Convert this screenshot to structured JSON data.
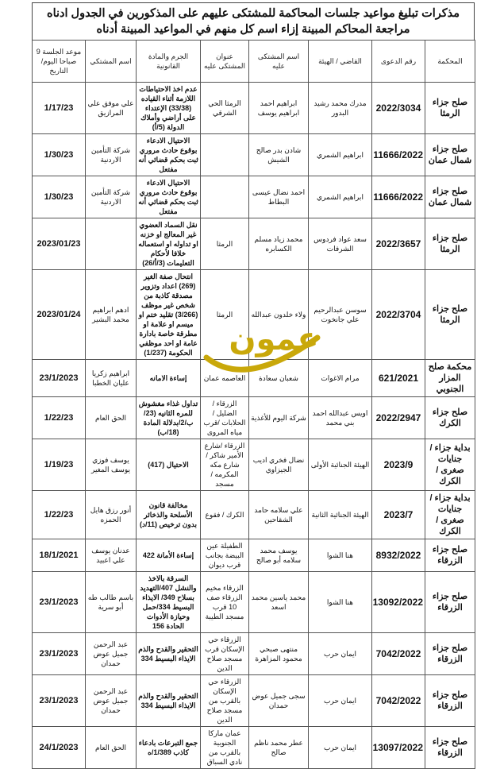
{
  "title": "مذكرات تبليغ مواعيد جلسات المحاكمة للمشتكى عليهم على المذكورين في الجدول ادناه مراجعة المحاكم المبينة إزاء اسم كل منهم في المواعيد المبينة أدناه",
  "watermark": "عمون",
  "watermark_color": "#c9a80a",
  "headers": {
    "court": "المحكمة",
    "case_no": "رقم الدعوى",
    "judge": "القاضي / الهيئة",
    "defendant": "اسم المشتكى عليه",
    "address": "عنوان المشتكى عليه",
    "crime": "الجرم والمادة القانونية",
    "complainant": "اسم المشتكي",
    "date": "موعد الجلسة 9 صباحا اليوم/التاريخ"
  },
  "rows": [
    {
      "court": "صلح جزاء الرمثا",
      "case_no": "2022/3034",
      "judge": "مدرك محمد رشيد البدور",
      "defendant": "ابراهيم احمد ابراهيم يوسف",
      "address": "الرمثا الحي الشرقي",
      "crime": "عدم اخذ الاحتياطات اللازمة أثناء القياده (33/38) الإعتداء على أراضي وأملاك الدولة (5/أ)",
      "complainant": "علي موفق علي المرازيق",
      "date": "1/17/23"
    },
    {
      "court": "صلح جزاء شمال عمان",
      "case_no": "11666/2022",
      "judge": "ابراهيم الشمري",
      "defendant": "شادن بدر صالح الشيش",
      "address": "",
      "crime": "الاحتيال الادعاء بوقوع حادث مروري ثبت بحكم قضائي أنه مفتعل",
      "complainant": "شركة التأمين الاردنية",
      "date": "1/30/23"
    },
    {
      "court": "صلح جزاء شمال عمان",
      "case_no": "11666/2022",
      "judge": "ابراهيم الشمري",
      "defendant": "احمد نضال عيسى البطاط",
      "address": "",
      "crime": "الاحتيال الادعاء بوقوع حادث مروري ثبت بحكم قضائي أنه مفتعل",
      "complainant": "شركة التأمين الاردنية",
      "date": "1/30/23"
    },
    {
      "court": "صلح جزاء الرمثا",
      "case_no": "2022/3657",
      "judge": "سعد عواد فردوس الشرفات",
      "defendant": "محمد زياد مسلم الكسابره",
      "address": "الرمثا",
      "crime": "نقل السماد العضوي غير المعالج او خزنه او تداوله او استعماله خلافا لأحكام التعليمات (3/أ/26)",
      "complainant": "",
      "date": "2023/01/23"
    },
    {
      "court": "صلح جزاء الرمثا",
      "case_no": "2022/3704",
      "judge": "سوسن عبدالرحيم علي جانخوت",
      "defendant": "ولاء خلدون عبدالله",
      "address": "الرمثا",
      "crime": "انتحال صفة الغير (269) اعداد وتزوير مصدقة كاذبة من شخص غير موظف (3/266) تقليد ختم او ميسم او علامة او مطرقة خاصة بادارة عامة او احد موظفي الحكومة (1/237)",
      "complainant": "ادهم ابراهيم محمد البشير",
      "date": "2023/01/24"
    },
    {
      "court": "محكمة صلح المزار الجنوبي",
      "case_no": "621/2021",
      "judge": "مرام الاغوات",
      "defendant": "شعبان سعادة",
      "address": "العاصمه عمان",
      "crime": "إساءة الامانه",
      "complainant": "ابراهيم زكريا عليان الخطبا",
      "date": "23/1/2023"
    },
    {
      "court": "صلح جزاء الكرك",
      "case_no": "2022/2947",
      "judge": "اويس عبدالله احمد بني محمد",
      "defendant": "شركة اليوم للأغذية",
      "address": "الزرقاء /الضليل /الحلابات /قرب مياه المروى",
      "crime": "تداول غذاء مغشوش للمره الثانيه (23/ب/2/بدلالة المادة (18/ب)",
      "complainant": "الحق العام",
      "date": "1/22/23"
    },
    {
      "court": "بداية جزاء /جنايات صغرى /الكرك",
      "case_no": "2023/9",
      "judge": "الهيئة الجنائية الأولى",
      "defendant": "نضال فخري اديب الجيزاوي",
      "address": "الزرقاء /شارع الأمير شاكر /شارع مكه المكرمه /مسجد",
      "crime": "الاحتيال (417)",
      "complainant": "يوسف فوزي يوسف المغير",
      "date": "1/19/23"
    },
    {
      "court": "بداية جزاء /جنايات صغرى /الكرك",
      "case_no": "2023/7",
      "judge": "الهيئة الجنائية الثانية",
      "defendant": "علي سلامه حامد الشقاحين",
      "address": "الكرك / فقوع",
      "crime": "مخالفة قانون الأسلحة والذخائر بدون ترخيص (11/د)",
      "complainant": "أنور رزق هايل الحمزه",
      "date": "1/22/23"
    },
    {
      "court": "صلح جزاء الزرقاء",
      "case_no": "8932/2022",
      "judge": "هنا الشوا",
      "defendant": "يوسف محمد سلامه أبو صالح",
      "address": "الطفيلة عين البيضة بجانب قرب ديوان",
      "crime": "إساءة الأمانة 422",
      "complainant": "عدنان يوسف علي اعبيد",
      "date": "18/1/2021"
    },
    {
      "court": "صلح جزاء الزرقاء",
      "case_no": "13092/2022",
      "judge": "هنا الشوا",
      "defendant": "محمد ياسين محمد اسعد",
      "address": "الزرقاء مخيم الزرقاء صف 10 قرب مسجد الطيبة",
      "crime": "السرقة بالاخذ والنشل 407/التهديد بسلاح 349/ الايذاء البسيط 334/حمل وحيازة الأدوات الحادة 156",
      "complainant": "باسم طالب طه أبو سرية",
      "date": "23/1/2023"
    },
    {
      "court": "صلح جزاء الزرقاء",
      "case_no": "7042/2022",
      "judge": "ايمان حرب",
      "defendant": "منتهى صبحي محمود المزاهرة",
      "address": "الزرقاء حي الإسكان قرب مسجد صلاح الدين",
      "crime": "التحقير والقدح والذم الايذاء البسيط 334",
      "complainant": "عبد الرحمن جميل عوض حمدان",
      "date": "23/1/2023"
    },
    {
      "court": "صلح جزاء الزرقاء",
      "case_no": "7042/2022",
      "judge": "ايمان حرب",
      "defendant": "سجى جميل عوض حمدان",
      "address": "الزرقاء حي الإسكان بالقرب من مسجد صلاح الدين",
      "crime": "التحقير والقدح والذم الايذاء البسيط 334",
      "complainant": "عبد الرحمن جميل عوض حمدان",
      "date": "23/1/2023"
    },
    {
      "court": "صلح جزاء الزرقاء",
      "case_no": "13097/2022",
      "judge": "ايمان حرب",
      "defendant": "عطر محمد ناظم صالح",
      "address": "عمان ماركا الجنوبية بالقرب من نادي السباق",
      "crime": "جمع التبرعات بادعاء كاذب 1/389/ه",
      "complainant": "الحق العام",
      "date": "24/1/2023"
    }
  ]
}
